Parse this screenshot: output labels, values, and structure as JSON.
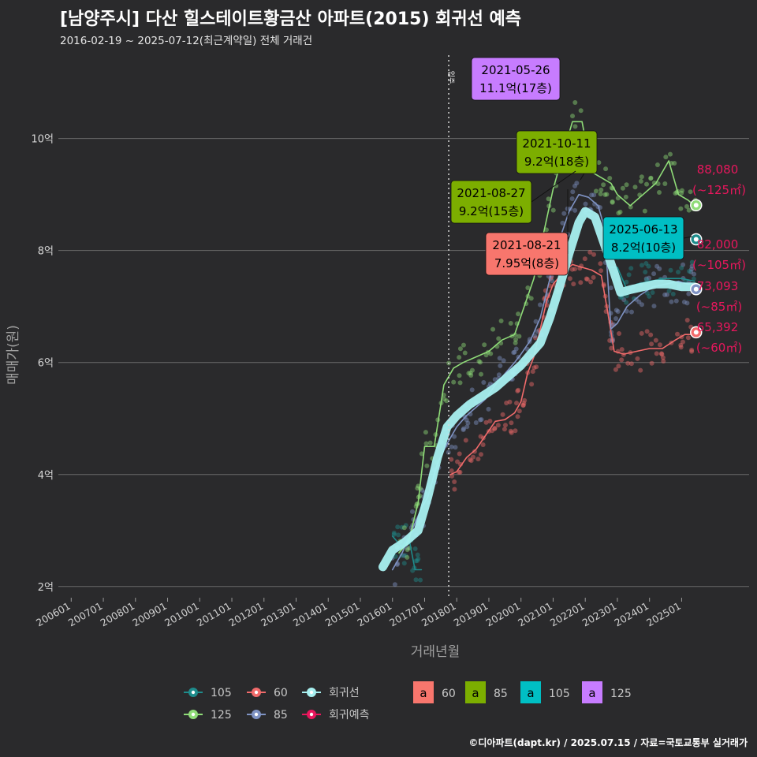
{
  "header": {
    "title": "[남양주시] 다산 힐스테이트황금산 아파트(2015) 회귀선 예측",
    "subtitle": "2016-02-19 ~ 2025-07-12(최근계약일) 전체 거래건"
  },
  "footer": {
    "credit": "©디아파트(dapt.kr) / 2025.07.15 / 자료=국토교통부 실거래가"
  },
  "colors": {
    "s60": "#f26b6b",
    "s85": "#7f93c4",
    "s105": "#1e8c8c",
    "s125": "#8fdc78",
    "regression": "#a8f0f0",
    "forecast": "#e8175d",
    "box60": "#f8766d",
    "box85": "#7cae00",
    "box105": "#00bfc4",
    "box125": "#c77cff"
  },
  "chart_data": {
    "type": "line",
    "xlabel": "거래년월",
    "ylabel": "매매가(원)",
    "x_ticks": [
      "200601",
      "200701",
      "200801",
      "200901",
      "201001",
      "201101",
      "201201",
      "201301",
      "201401",
      "201501",
      "201601",
      "201701",
      "201801",
      "201901",
      "202001",
      "202101",
      "202201",
      "202301",
      "202401",
      "202501"
    ],
    "y_ticks": [
      "2억",
      "4억",
      "6억",
      "8억",
      "10억"
    ],
    "y_tick_values": [
      2,
      4,
      6,
      8,
      10
    ],
    "xlim": [
      2005.6,
      2027.1
    ],
    "ylim": [
      1.8,
      11.6
    ],
    "y_unit": "억",
    "move_in_marker": {
      "x": 2017.75,
      "label": "입주"
    },
    "series": [
      {
        "name": "60",
        "kind": "line",
        "points": [
          [
            2017.8,
            4.0
          ],
          [
            2018.0,
            4.05
          ],
          [
            2018.3,
            4.3
          ],
          [
            2018.6,
            4.45
          ],
          [
            2018.9,
            4.7
          ],
          [
            2019.2,
            4.95
          ],
          [
            2019.5,
            4.98
          ],
          [
            2019.8,
            5.1
          ],
          [
            2020.0,
            5.3
          ],
          [
            2020.2,
            5.8
          ],
          [
            2020.4,
            6.1
          ],
          [
            2020.6,
            6.6
          ],
          [
            2020.8,
            7.1
          ],
          [
            2021.0,
            7.4
          ],
          [
            2021.3,
            7.6
          ],
          [
            2021.6,
            7.75
          ],
          [
            2021.9,
            7.7
          ],
          [
            2022.2,
            7.65
          ],
          [
            2022.5,
            7.55
          ],
          [
            2022.7,
            6.9
          ],
          [
            2022.9,
            6.2
          ],
          [
            2023.2,
            6.15
          ],
          [
            2023.6,
            6.2
          ],
          [
            2024.0,
            6.25
          ],
          [
            2024.4,
            6.25
          ],
          [
            2024.8,
            6.4
          ],
          [
            2025.1,
            6.5
          ],
          [
            2025.4,
            6.5
          ]
        ]
      },
      {
        "name": "85",
        "kind": "line",
        "points": [
          [
            2016.0,
            2.3
          ],
          [
            2016.3,
            2.6
          ],
          [
            2016.6,
            3.0
          ],
          [
            2016.9,
            3.4
          ],
          [
            2017.1,
            3.6
          ],
          [
            2017.4,
            4.2
          ],
          [
            2017.7,
            4.55
          ],
          [
            2018.0,
            4.85
          ],
          [
            2018.3,
            5.05
          ],
          [
            2018.6,
            5.2
          ],
          [
            2018.9,
            5.35
          ],
          [
            2019.2,
            5.6
          ],
          [
            2019.5,
            5.8
          ],
          [
            2019.8,
            6.0
          ],
          [
            2020.0,
            6.15
          ],
          [
            2020.3,
            6.4
          ],
          [
            2020.6,
            6.8
          ],
          [
            2020.9,
            7.5
          ],
          [
            2021.2,
            8.2
          ],
          [
            2021.5,
            8.7
          ],
          [
            2021.8,
            9.0
          ],
          [
            2022.1,
            8.95
          ],
          [
            2022.4,
            8.8
          ],
          [
            2022.6,
            8.4
          ],
          [
            2022.8,
            6.6
          ],
          [
            2023.0,
            6.7
          ],
          [
            2023.3,
            7.0
          ],
          [
            2023.7,
            7.2
          ],
          [
            2024.1,
            7.35
          ],
          [
            2024.5,
            7.4
          ],
          [
            2024.9,
            7.45
          ],
          [
            2025.2,
            7.4
          ],
          [
            2025.4,
            7.4
          ]
        ]
      },
      {
        "name": "105",
        "kind": "line",
        "points": [
          [
            2016.0,
            2.9
          ],
          [
            2016.3,
            2.7
          ],
          [
            2016.5,
            2.9
          ],
          [
            2016.7,
            2.3
          ],
          [
            2016.9,
            2.3
          ],
          [
            2022.8,
            7.7
          ],
          [
            2023.0,
            7.7
          ],
          [
            2023.3,
            7.3
          ],
          [
            2023.6,
            7.4
          ],
          [
            2024.0,
            7.45
          ],
          [
            2024.5,
            7.5
          ],
          [
            2025.0,
            7.5
          ],
          [
            2025.4,
            7.45
          ]
        ]
      },
      {
        "name": "125",
        "kind": "line",
        "points": [
          [
            2016.2,
            2.6
          ],
          [
            2016.5,
            2.8
          ],
          [
            2016.8,
            3.5
          ],
          [
            2017.0,
            4.5
          ],
          [
            2017.3,
            4.5
          ],
          [
            2017.6,
            5.6
          ],
          [
            2017.9,
            5.9
          ],
          [
            2018.2,
            6.0
          ],
          [
            2018.6,
            6.1
          ],
          [
            2019.0,
            6.2
          ],
          [
            2019.4,
            6.4
          ],
          [
            2019.8,
            6.5
          ],
          [
            2020.1,
            7.0
          ],
          [
            2020.4,
            7.5
          ],
          [
            2020.7,
            8.3
          ],
          [
            2021.0,
            9.1
          ],
          [
            2021.3,
            9.7
          ],
          [
            2021.6,
            10.3
          ],
          [
            2021.9,
            10.3
          ],
          [
            2022.2,
            9.4
          ],
          [
            2022.5,
            9.3
          ],
          [
            2022.8,
            9.2
          ],
          [
            2023.0,
            9.0
          ],
          [
            2023.4,
            8.8
          ],
          [
            2023.8,
            9.0
          ],
          [
            2024.2,
            9.2
          ],
          [
            2024.6,
            9.6
          ],
          [
            2024.9,
            9.0
          ],
          [
            2025.2,
            8.9
          ],
          [
            2025.4,
            8.8
          ]
        ]
      },
      {
        "name": "회귀선",
        "kind": "regression",
        "points": [
          [
            2015.7,
            2.35
          ],
          [
            2016.0,
            2.65
          ],
          [
            2016.4,
            2.8
          ],
          [
            2016.8,
            3.0
          ],
          [
            2017.1,
            3.6
          ],
          [
            2017.4,
            4.3
          ],
          [
            2017.7,
            4.85
          ],
          [
            2018.0,
            5.05
          ],
          [
            2018.4,
            5.25
          ],
          [
            2018.8,
            5.4
          ],
          [
            2019.2,
            5.55
          ],
          [
            2019.6,
            5.75
          ],
          [
            2020.0,
            5.95
          ],
          [
            2020.3,
            6.15
          ],
          [
            2020.6,
            6.35
          ],
          [
            2020.9,
            6.8
          ],
          [
            2021.2,
            7.35
          ],
          [
            2021.5,
            7.95
          ],
          [
            2021.8,
            8.5
          ],
          [
            2022.0,
            8.7
          ],
          [
            2022.3,
            8.6
          ],
          [
            2022.6,
            8.1
          ],
          [
            2022.9,
            7.6
          ],
          [
            2023.1,
            7.25
          ],
          [
            2023.4,
            7.3
          ],
          [
            2023.8,
            7.35
          ],
          [
            2024.2,
            7.4
          ],
          [
            2024.6,
            7.4
          ],
          [
            2025.0,
            7.35
          ],
          [
            2025.4,
            7.35
          ]
        ]
      }
    ],
    "forecast_points": [
      {
        "series": "125",
        "x": 2025.45,
        "y": 8.808,
        "label_value": "88,080",
        "label_area": "(~125㎡)"
      },
      {
        "series": "105",
        "x": 2025.45,
        "y": 8.2,
        "label_value": "82,000",
        "label_area": "(~105㎡)"
      },
      {
        "series": "85",
        "x": 2025.45,
        "y": 7.309,
        "label_value": "73,093",
        "label_area": "(~85㎡)"
      },
      {
        "series": "60",
        "x": 2025.45,
        "y": 6.539,
        "label_value": "65,392",
        "label_area": "(~60㎡)"
      }
    ],
    "annotations": [
      {
        "line1": "2021-05-26",
        "line2": "11.1억(17층)",
        "box": "box125",
        "text_color": "#000000"
      },
      {
        "line1": "2021-10-11",
        "line2": "9.2억(18층)",
        "box": "box85",
        "text_color": "#000000"
      },
      {
        "line1": "2021-08-27",
        "line2": "9.2억(15층)",
        "box": "box85",
        "text_color": "#000000"
      },
      {
        "line1": "2021-08-21",
        "line2": "7.95억(8층)",
        "box": "box60",
        "text_color": "#000000"
      },
      {
        "line1": "2025-06-13",
        "line2": "8.2억(10층)",
        "box": "box105",
        "text_color": "#000000"
      }
    ],
    "legend": {
      "position": "bottom",
      "line_items": [
        "105",
        "60",
        "회귀선",
        "125",
        "85",
        "회귀예측"
      ],
      "box_glyph": "a",
      "box_items": [
        "60",
        "85",
        "105",
        "125"
      ]
    }
  }
}
